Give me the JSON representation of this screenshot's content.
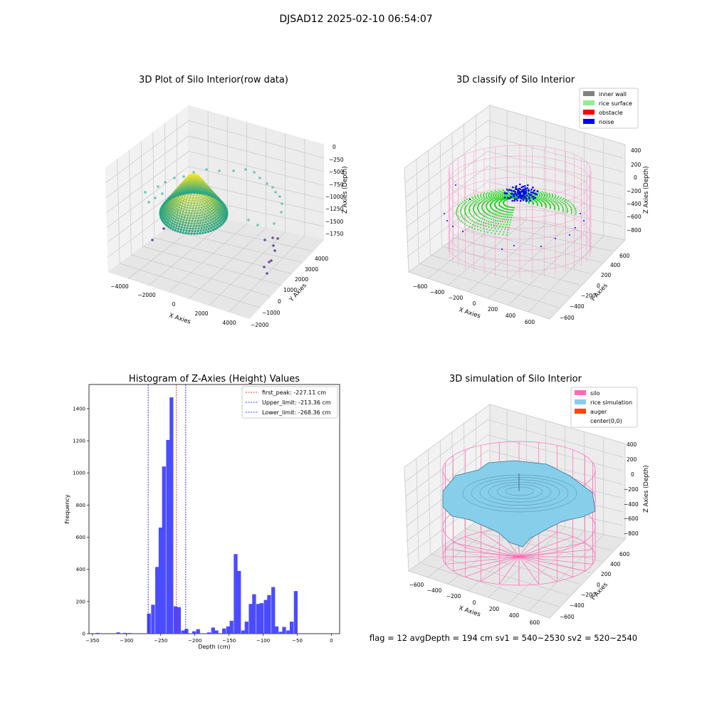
{
  "page": {
    "suptitle": "DJSAD12 2025-02-10 06:54:07"
  },
  "colors": {
    "inner_wall": "#808080",
    "rice_surface": "#90ee90",
    "obstacle": "#ff0000",
    "noise": "#0000ff",
    "silo": "#ff69b4",
    "rice_simulation": "#87ceeb",
    "auger": "#ff4500",
    "hist_bar": "#4b4bff"
  },
  "panels": {
    "raw": {
      "title": "3D Plot of Silo Interior(row data)",
      "xlabel": "X Axies",
      "ylabel": "Y Axies",
      "zlabel": "Z Axies (Depth)",
      "xticks": [
        "−4000",
        "−2000",
        "0",
        "2000",
        "4000"
      ],
      "yticks": [
        "−2000",
        "−1000",
        "0",
        "1000",
        "2000",
        "3000",
        "4000"
      ],
      "zticks": [
        "0",
        "−250",
        "−500",
        "−750",
        "−1000",
        "−1250",
        "−1500",
        "−1750"
      ]
    },
    "classify": {
      "title": "3D classify of Silo Interior",
      "xlabel": "X Axies",
      "ylabel": "Y Axies",
      "zlabel": "Z Axies (Depth)",
      "xticks": [
        "−600",
        "−400",
        "−200",
        "0",
        "200",
        "400",
        "600"
      ],
      "yticks": [
        "−600",
        "−400",
        "−200",
        "0",
        "200",
        "400",
        "600"
      ],
      "zticks": [
        "400",
        "200",
        "0",
        "−200",
        "−400",
        "−600",
        "−800"
      ],
      "legend": [
        "inner wall",
        "rice surface",
        "obstacle",
        "noise"
      ]
    },
    "simulation": {
      "title": "3D simulation of Silo Interior",
      "xlabel": "X Axies",
      "ylabel": "Y Axies",
      "zlabel": "Z Axies (Depth)",
      "xticks": [
        "−600",
        "−400",
        "−200",
        "0",
        "200",
        "400",
        "600"
      ],
      "yticks": [
        "−600",
        "−400",
        "−200",
        "0",
        "200",
        "400",
        "600"
      ],
      "zticks": [
        "400",
        "200",
        "0",
        "−200",
        "−400",
        "−600",
        "−800"
      ],
      "legend": [
        "silo",
        "rice simulation",
        "auger",
        "center(0,0)"
      ],
      "caption": "flag = 12  avgDepth = 194 cm  sv1 = 540~2530  sv2 = 520~2540"
    }
  },
  "chart_data": {
    "type": "bar",
    "title": "Histogram of Z-Axies (Height) Values",
    "xlabel": "Depth (cm)",
    "ylabel": "Frequency",
    "xlim": [
      -355,
      12
    ],
    "ylim": [
      0,
      1550
    ],
    "xticks": [
      -350,
      -300,
      -250,
      -200,
      -150,
      -100,
      -50,
      0
    ],
    "yticks": [
      0,
      200,
      400,
      600,
      800,
      1000,
      1200,
      1400
    ],
    "bin_width": 5.5,
    "bins": [
      {
        "x": -345,
        "v": 5
      },
      {
        "x": -315,
        "v": 8
      },
      {
        "x": -305,
        "v": 5
      },
      {
        "x": -298,
        "v": 4
      },
      {
        "x": -270,
        "v": 125
      },
      {
        "x": -264,
        "v": 180
      },
      {
        "x": -258,
        "v": 415
      },
      {
        "x": -253,
        "v": 660
      },
      {
        "x": -248,
        "v": 1040
      },
      {
        "x": -242,
        "v": 1205
      },
      {
        "x": -237,
        "v": 1470
      },
      {
        "x": -231,
        "v": 170
      },
      {
        "x": -226,
        "v": 165
      },
      {
        "x": -220,
        "v": 20
      },
      {
        "x": -215,
        "v": 30
      },
      {
        "x": -204,
        "v": 15
      },
      {
        "x": -198,
        "v": 28
      },
      {
        "x": -182,
        "v": 8
      },
      {
        "x": -176,
        "v": 38
      },
      {
        "x": -171,
        "v": 20
      },
      {
        "x": -160,
        "v": 32
      },
      {
        "x": -154,
        "v": 45
      },
      {
        "x": -149,
        "v": 80
      },
      {
        "x": -143,
        "v": 495
      },
      {
        "x": -138,
        "v": 390
      },
      {
        "x": -132,
        "v": 20
      },
      {
        "x": -127,
        "v": 75
      },
      {
        "x": -121,
        "v": 185
      },
      {
        "x": -116,
        "v": 245
      },
      {
        "x": -110,
        "v": 185
      },
      {
        "x": -105,
        "v": 190
      },
      {
        "x": -99,
        "v": 210
      },
      {
        "x": -94,
        "v": 240
      },
      {
        "x": -88,
        "v": 290
      },
      {
        "x": -83,
        "v": 45
      },
      {
        "x": -77,
        "v": 12
      },
      {
        "x": -72,
        "v": 42
      },
      {
        "x": -66,
        "v": 20
      },
      {
        "x": -61,
        "v": 75
      },
      {
        "x": -55,
        "v": 265
      }
    ],
    "lines": [
      {
        "label": "first_peak: -227.11 cm",
        "x": -227.11,
        "color": "#ff0000"
      },
      {
        "label": "Upper_limit: -213.36 cm",
        "x": -213.36,
        "color": "#0000ff"
      },
      {
        "label": "Lower_limit: -268.36 cm",
        "x": -268.36,
        "color": "#0000ff"
      }
    ]
  }
}
